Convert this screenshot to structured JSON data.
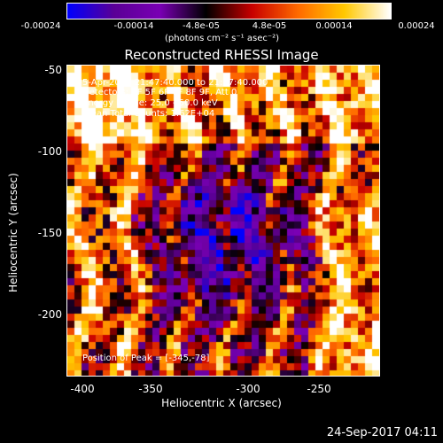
{
  "colorbar": {
    "ticks": [
      "-0.00024",
      "-0.00014",
      "-4.8e-05",
      "4.8e-05",
      "0.00014",
      "0.00024"
    ],
    "units": "(photons cm⁻² s⁻¹ asec⁻²)"
  },
  "plot": {
    "title": "Reconstructed RHESSI Image",
    "xlabel": "Heliocentric X (arcsec)",
    "ylabel": "Heliocentric Y (arcsec)",
    "xticks": [
      "-400",
      "-350",
      "-300",
      "-250"
    ],
    "yticks": [
      "-50",
      "-100",
      "-150",
      "-200"
    ],
    "annotations": {
      "time": "5-Apr-2015 21:47:40.000 to 21:57:40.000",
      "detectors": "Detectors: 3F 5F 6F 7F 8F 9F, Att 0",
      "energy": "Energy Range: 25.0 - 50.0 keV",
      "method": "Clean    Total Counts: 1.62E+04",
      "peak": "Position of Peak = [-345,-78]"
    }
  },
  "footer": {
    "timestamp": "24-Sep-2017 04:11"
  },
  "chart_data": {
    "type": "heatmap",
    "title": "Reconstructed RHESSI Image",
    "xlabel": "Heliocentric X (arcsec)",
    "ylabel": "Heliocentric Y (arcsec)",
    "xlim": [
      -410,
      -220
    ],
    "ylim": [
      -237,
      -48
    ],
    "colorbar_range": [
      -0.00024,
      0.00024
    ],
    "colormap": [
      "#0000ff",
      "#5a0096",
      "#7a00b4",
      "#000000",
      "#c80000",
      "#ff6a00",
      "#ffc800",
      "#ffffff"
    ],
    "peak_position": [
      -345,
      -78
    ]
  }
}
